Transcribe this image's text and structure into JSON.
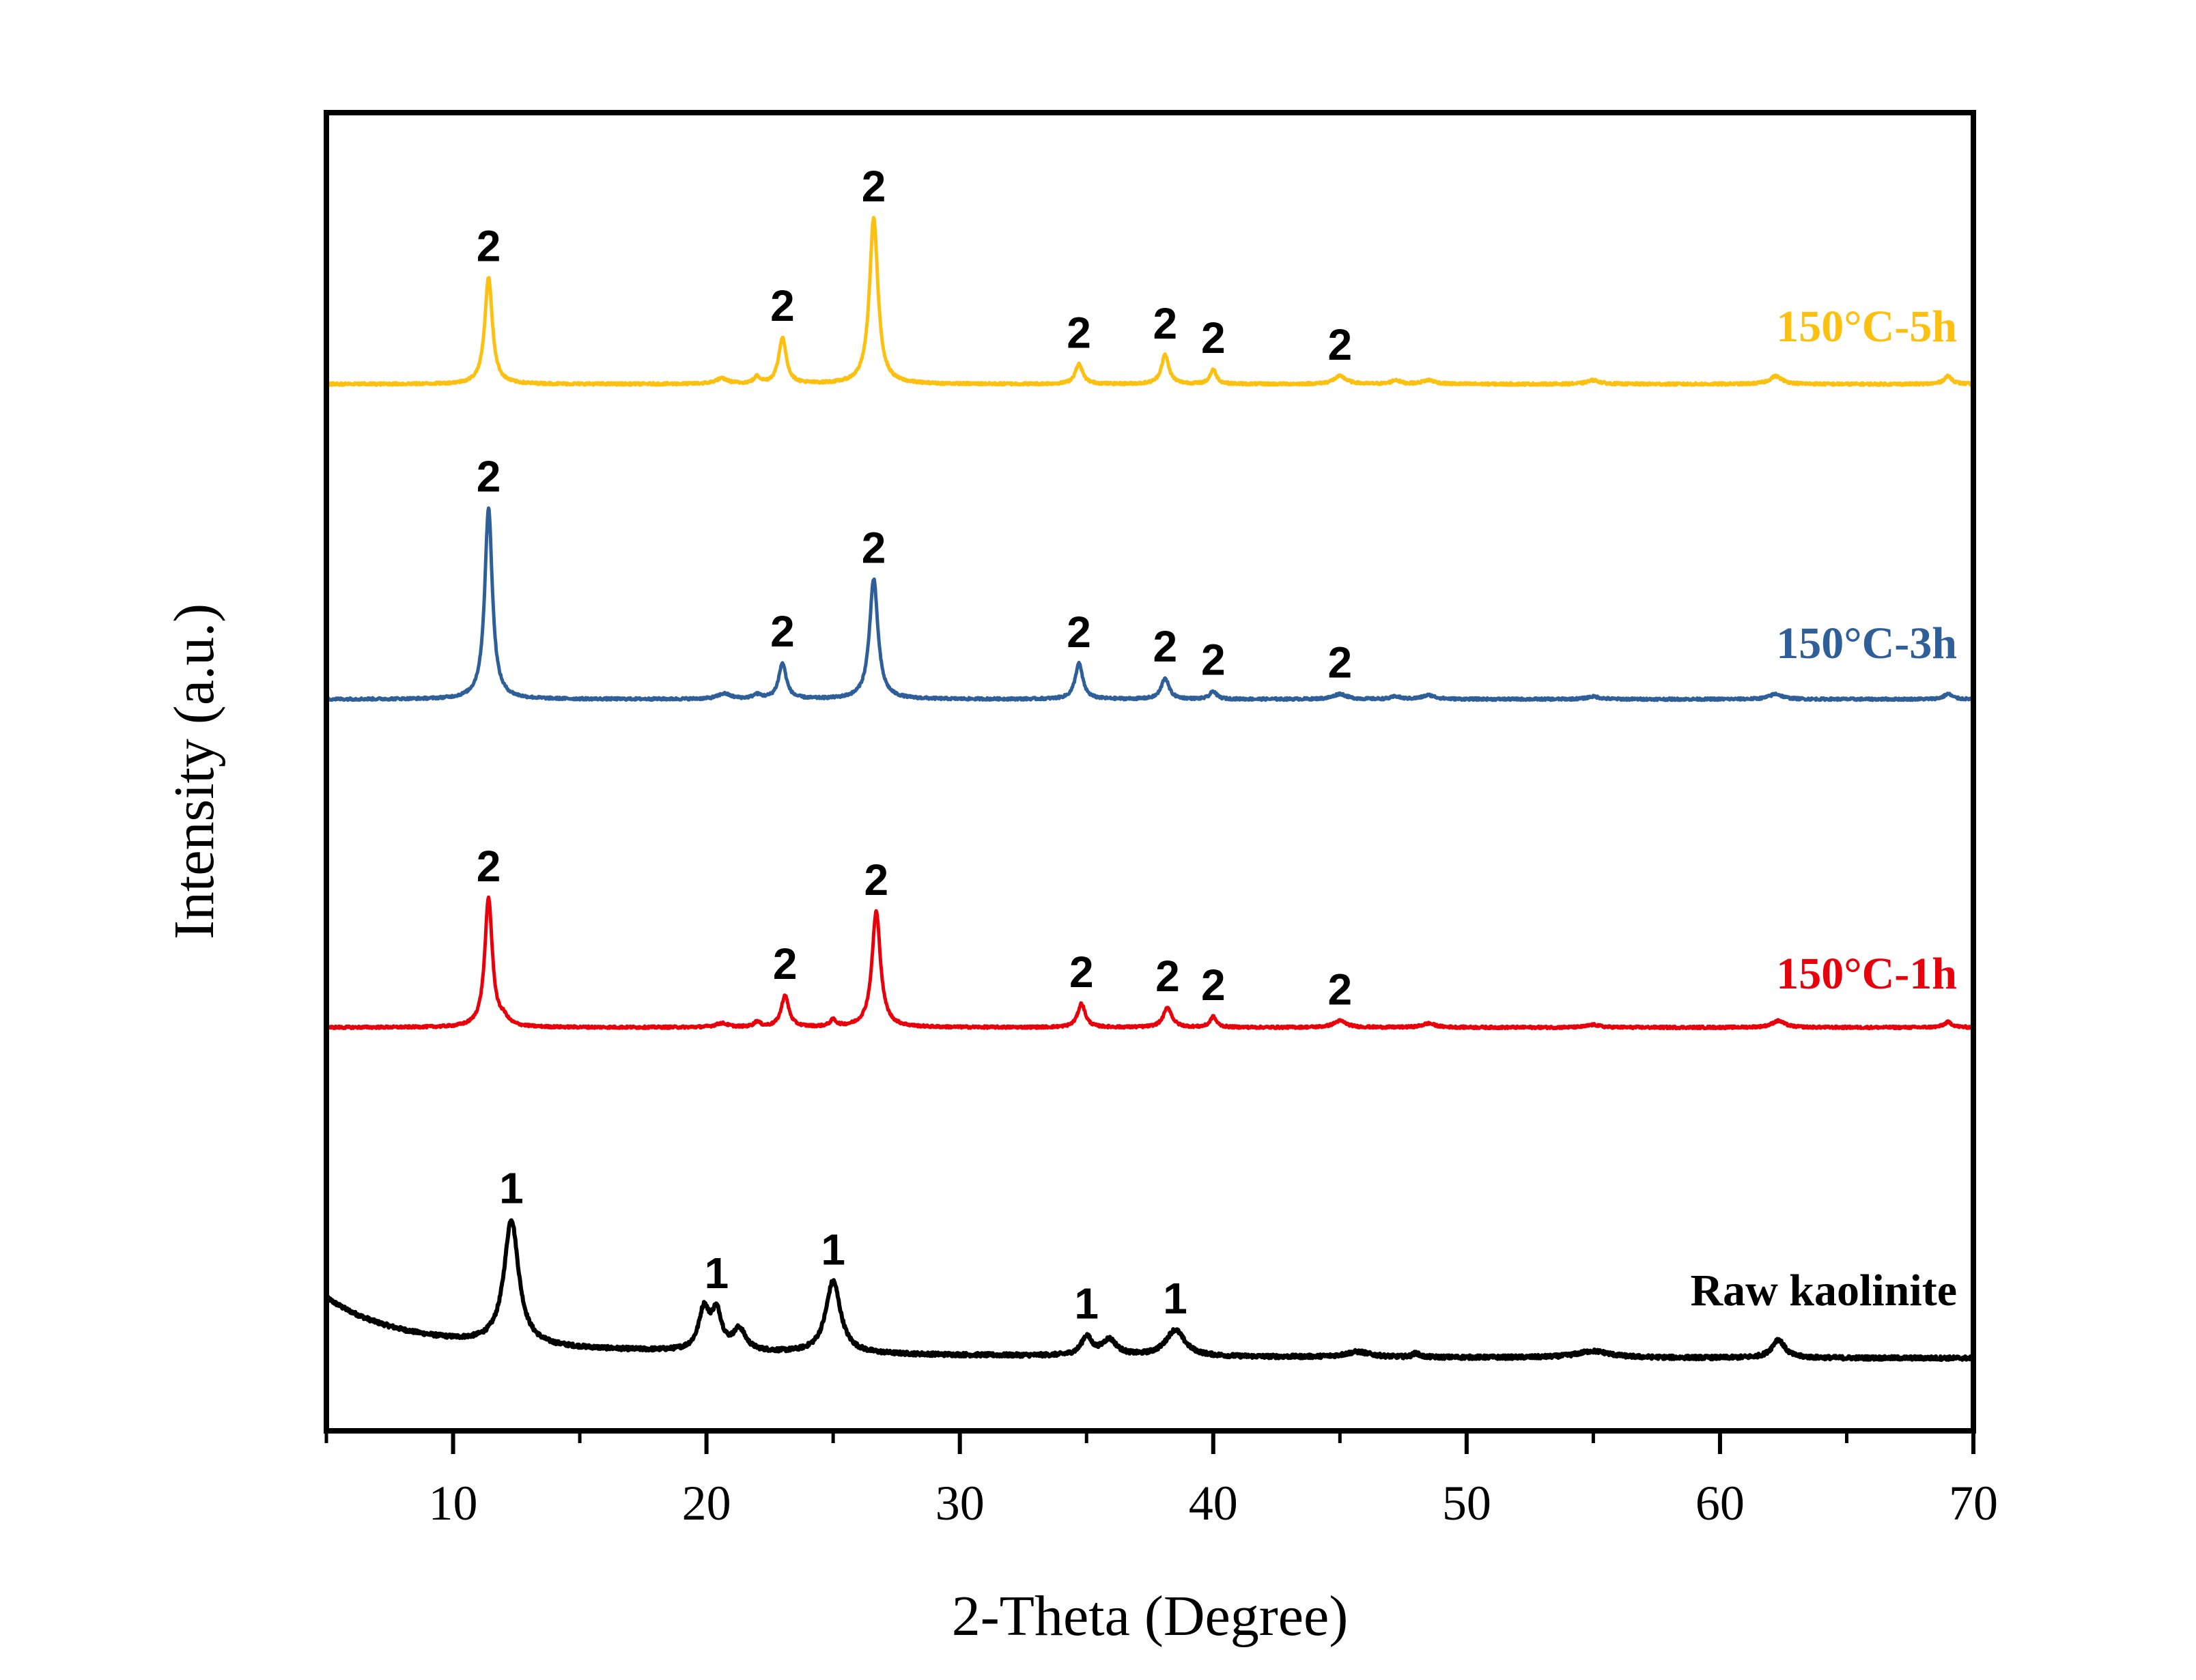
{
  "chart_data": {
    "type": "line",
    "title": "",
    "xlabel": "2-Theta (Degree)",
    "ylabel": "Intensity (a.u.)",
    "xlim": [
      5,
      70
    ],
    "ylim": [
      0,
      100
    ],
    "x_ticks": [
      10,
      20,
      30,
      40,
      50,
      60,
      70
    ],
    "x_minor_ticks": [
      5,
      15,
      25,
      35,
      45,
      55,
      65
    ],
    "y_ticks": [],
    "grid": false,
    "legend": "inline labels at right of each trace",
    "series": [
      {
        "name": "Raw kaolinite",
        "color": "#000000",
        "baseline": 5.5,
        "background_rise": {
          "start": 10.5,
          "decay": 3.2
        },
        "peaks": [
          {
            "x": 12.3,
            "height": 9.5,
            "width": 0.35,
            "label": "1"
          },
          {
            "x": 19.9,
            "height": 3.0,
            "width": 0.25,
            "label": ""
          },
          {
            "x": 20.4,
            "height": 2.8,
            "width": 0.25,
            "label": "1"
          },
          {
            "x": 21.3,
            "height": 1.6,
            "width": 0.3,
            "label": ""
          },
          {
            "x": 25.0,
            "height": 5.5,
            "width": 0.35,
            "label": "1"
          },
          {
            "x": 35.0,
            "height": 1.4,
            "width": 0.25,
            "label": "1"
          },
          {
            "x": 35.9,
            "height": 1.2,
            "width": 0.35,
            "label": ""
          },
          {
            "x": 38.5,
            "height": 2.0,
            "width": 0.45,
            "label": "1"
          },
          {
            "x": 45.7,
            "height": 0.4,
            "width": 0.6,
            "label": ""
          },
          {
            "x": 48.0,
            "height": 0.3,
            "width": 0.15,
            "label": ""
          },
          {
            "x": 55.0,
            "height": 0.5,
            "width": 0.8,
            "label": ""
          },
          {
            "x": 62.3,
            "height": 1.4,
            "width": 0.3,
            "label": ""
          }
        ]
      },
      {
        "name": "150°C-1h",
        "color": "#e8000b",
        "baseline": 30.6,
        "peaks": [
          {
            "x": 11.4,
            "height": 9.8,
            "width": 0.18,
            "label": "2"
          },
          {
            "x": 12.0,
            "height": 0.5,
            "width": 0.2,
            "label": ""
          },
          {
            "x": 20.6,
            "height": 0.3,
            "width": 0.3,
            "label": ""
          },
          {
            "x": 22.0,
            "height": 0.4,
            "width": 0.15,
            "label": ""
          },
          {
            "x": 23.1,
            "height": 2.4,
            "width": 0.18,
            "label": "2"
          },
          {
            "x": 25.0,
            "height": 0.5,
            "width": 0.15,
            "label": ""
          },
          {
            "x": 26.7,
            "height": 8.8,
            "width": 0.2,
            "label": "2"
          },
          {
            "x": 34.8,
            "height": 1.8,
            "width": 0.18,
            "label": "2"
          },
          {
            "x": 38.2,
            "height": 1.5,
            "width": 0.2,
            "label": "2"
          },
          {
            "x": 40.0,
            "height": 0.8,
            "width": 0.15,
            "label": "2"
          },
          {
            "x": 45.0,
            "height": 0.5,
            "width": 0.3,
            "label": "2"
          },
          {
            "x": 48.5,
            "height": 0.3,
            "width": 0.3,
            "label": ""
          },
          {
            "x": 55.0,
            "height": 0.2,
            "width": 0.3,
            "label": ""
          },
          {
            "x": 62.3,
            "height": 0.5,
            "width": 0.3,
            "label": ""
          },
          {
            "x": 69.0,
            "height": 0.4,
            "width": 0.2,
            "label": ""
          }
        ]
      },
      {
        "name": "150°C-3h",
        "color": "#2e5f99",
        "baseline": 55.5,
        "peaks": [
          {
            "x": 11.4,
            "height": 14.5,
            "width": 0.18,
            "label": "2"
          },
          {
            "x": 20.7,
            "height": 0.4,
            "width": 0.3,
            "label": ""
          },
          {
            "x": 22.0,
            "height": 0.3,
            "width": 0.2,
            "label": ""
          },
          {
            "x": 23.0,
            "height": 2.7,
            "width": 0.18,
            "label": "2"
          },
          {
            "x": 26.6,
            "height": 9.1,
            "width": 0.2,
            "label": "2"
          },
          {
            "x": 34.7,
            "height": 2.7,
            "width": 0.18,
            "label": "2"
          },
          {
            "x": 38.1,
            "height": 1.6,
            "width": 0.18,
            "label": "2"
          },
          {
            "x": 40.0,
            "height": 0.6,
            "width": 0.15,
            "label": "2"
          },
          {
            "x": 45.0,
            "height": 0.4,
            "width": 0.3,
            "label": "2"
          },
          {
            "x": 47.2,
            "height": 0.2,
            "width": 0.2,
            "label": ""
          },
          {
            "x": 48.5,
            "height": 0.3,
            "width": 0.3,
            "label": ""
          },
          {
            "x": 55.0,
            "height": 0.2,
            "width": 0.3,
            "label": ""
          },
          {
            "x": 62.2,
            "height": 0.4,
            "width": 0.3,
            "label": ""
          },
          {
            "x": 69.0,
            "height": 0.4,
            "width": 0.2,
            "label": ""
          }
        ]
      },
      {
        "name": "150°C-5h",
        "color": "#fcc010",
        "baseline": 79.4,
        "peaks": [
          {
            "x": 11.4,
            "height": 8.1,
            "width": 0.18,
            "label": "2"
          },
          {
            "x": 20.6,
            "height": 0.4,
            "width": 0.3,
            "label": ""
          },
          {
            "x": 22.0,
            "height": 0.5,
            "width": 0.15,
            "label": ""
          },
          {
            "x": 23.0,
            "height": 3.5,
            "width": 0.18,
            "label": "2"
          },
          {
            "x": 26.6,
            "height": 12.6,
            "width": 0.2,
            "label": "2"
          },
          {
            "x": 34.7,
            "height": 1.5,
            "width": 0.18,
            "label": "2"
          },
          {
            "x": 38.1,
            "height": 2.2,
            "width": 0.18,
            "label": "2"
          },
          {
            "x": 40.0,
            "height": 1.1,
            "width": 0.15,
            "label": "2"
          },
          {
            "x": 45.0,
            "height": 0.6,
            "width": 0.3,
            "label": "2"
          },
          {
            "x": 47.2,
            "height": 0.3,
            "width": 0.2,
            "label": ""
          },
          {
            "x": 48.5,
            "height": 0.3,
            "width": 0.3,
            "label": ""
          },
          {
            "x": 55.0,
            "height": 0.3,
            "width": 0.3,
            "label": ""
          },
          {
            "x": 62.2,
            "height": 0.6,
            "width": 0.3,
            "label": ""
          },
          {
            "x": 69.0,
            "height": 0.6,
            "width": 0.2,
            "label": ""
          }
        ]
      }
    ],
    "series_labels": [
      {
        "text": "Raw kaolinite",
        "series": "Raw kaolinite",
        "color": "#000000"
      },
      {
        "text": "150°C-1h",
        "series": "150°C-1h",
        "color": "#e8000b"
      },
      {
        "text": "150°C-3h",
        "series": "150°C-3h",
        "color": "#2e5f99"
      },
      {
        "text": "150°C-5h",
        "series": "150°C-5h",
        "color": "#fcc010"
      }
    ]
  }
}
